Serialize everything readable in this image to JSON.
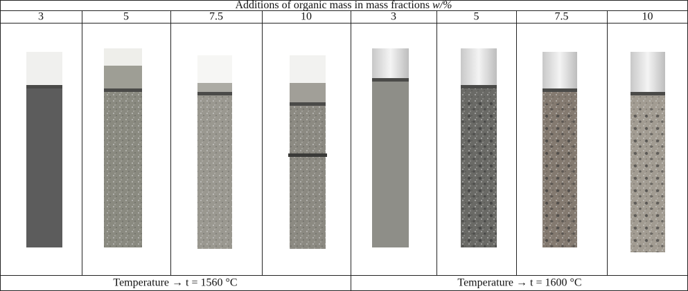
{
  "table": {
    "title": "Additions of organic mass in mass fractions",
    "title_symbol": "w/%",
    "columns": [
      "3",
      "5",
      "7.5",
      "10",
      "3",
      "5",
      "7.5",
      "10"
    ],
    "groups": [
      "Temperature → t = 1560 °C",
      "Temperature → t = 1600 °C"
    ]
  }
}
